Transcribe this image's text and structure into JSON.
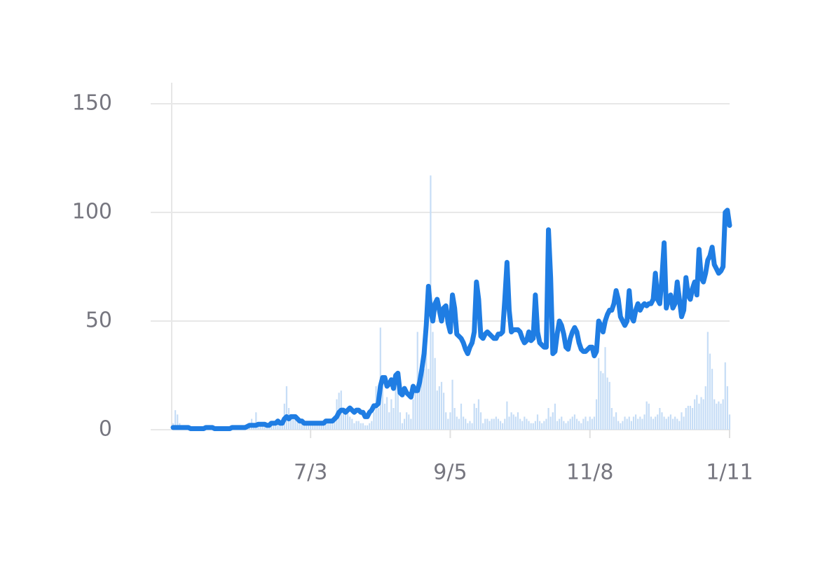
{
  "chart_data": {
    "type": "bar",
    "categories": [
      null,
      null,
      null,
      null,
      null,
      null,
      null,
      null,
      null,
      null,
      null,
      null,
      null,
      null,
      null,
      null,
      null,
      null,
      null,
      null,
      null,
      null,
      null,
      null,
      null,
      null,
      null,
      null,
      null,
      null,
      null,
      null,
      null,
      null,
      null,
      null,
      null,
      null,
      null,
      null,
      null,
      null,
      null,
      null,
      null,
      null,
      null,
      null,
      null,
      null,
      null,
      null,
      null,
      null,
      null,
      null,
      null,
      null,
      null,
      null,
      null,
      null,
      null,
      "7/3",
      null,
      null,
      null,
      null,
      null,
      null,
      null,
      null,
      null,
      null,
      null,
      null,
      null,
      null,
      null,
      null,
      null,
      null,
      null,
      null,
      null,
      null,
      null,
      null,
      null,
      null,
      null,
      null,
      null,
      null,
      null,
      null,
      null,
      null,
      null,
      null,
      null,
      null,
      null,
      null,
      null,
      null,
      null,
      null,
      null,
      null,
      null,
      null,
      null,
      null,
      null,
      null,
      null,
      null,
      null,
      null,
      null,
      null,
      null,
      null,
      null,
      null,
      null,
      "9/5",
      null,
      null,
      null,
      null,
      null,
      null,
      null,
      null,
      null,
      null,
      null,
      null,
      null,
      null,
      null,
      null,
      null,
      null,
      null,
      null,
      null,
      null,
      null,
      null,
      null,
      null,
      null,
      null,
      null,
      null,
      null,
      null,
      null,
      null,
      null,
      null,
      null,
      null,
      null,
      null,
      null,
      null,
      null,
      null,
      null,
      null,
      null,
      null,
      null,
      null,
      null,
      null,
      null,
      null,
      null,
      null,
      null,
      null,
      null,
      null,
      null,
      null,
      null,
      "11/8",
      null,
      null,
      null,
      null,
      null,
      null,
      null,
      null,
      null,
      null,
      null,
      null,
      null,
      null,
      null,
      null,
      null,
      null,
      null,
      null,
      null,
      null,
      null,
      null,
      null,
      null,
      null,
      null,
      null,
      null,
      null,
      null,
      null,
      null,
      null,
      null,
      null,
      null,
      null,
      null,
      null,
      null,
      null,
      null,
      null,
      null,
      null,
      null,
      null,
      null,
      null,
      null,
      null,
      null,
      null,
      null,
      null,
      null,
      null,
      null,
      null,
      null,
      null,
      "1/11"
    ],
    "series": [
      {
        "type": "bar",
        "color": "#c6ddf6",
        "values": [
          3,
          9,
          7,
          3,
          1,
          1,
          1,
          1,
          1,
          1,
          1,
          1,
          1,
          1,
          1,
          1,
          1,
          1,
          1,
          1,
          1,
          1,
          1,
          1,
          1,
          1,
          1,
          1,
          1,
          1,
          1,
          1,
          1,
          2,
          1,
          1,
          5,
          3,
          8,
          2,
          2,
          3,
          2,
          3,
          2,
          4,
          2,
          3,
          4,
          3,
          5,
          12,
          20,
          10,
          6,
          5,
          6,
          4,
          3,
          5,
          3,
          2,
          2,
          3,
          2,
          2,
          3,
          2,
          3,
          2,
          4,
          3,
          5,
          4,
          6,
          14,
          17,
          18,
          9,
          7,
          8,
          6,
          5,
          3,
          4,
          4,
          3,
          3,
          2,
          2,
          3,
          4,
          8,
          20,
          10,
          47,
          20,
          12,
          15,
          8,
          14,
          10,
          21,
          20,
          8,
          3,
          5,
          8,
          7,
          5,
          14,
          17,
          45,
          22,
          30,
          28,
          38,
          28,
          117,
          45,
          33,
          18,
          20,
          22,
          17,
          8,
          5,
          8,
          23,
          10,
          6,
          5,
          12,
          6,
          5,
          3,
          4,
          3,
          12,
          10,
          14,
          8,
          3,
          5,
          5,
          4,
          5,
          5,
          6,
          5,
          4,
          3,
          5,
          13,
          6,
          8,
          7,
          6,
          8,
          5,
          4,
          6,
          5,
          4,
          3,
          3,
          4,
          7,
          4,
          3,
          4,
          5,
          10,
          6,
          8,
          12,
          4,
          5,
          6,
          4,
          3,
          4,
          5,
          6,
          7,
          5,
          4,
          3,
          5,
          6,
          4,
          6,
          5,
          6,
          14,
          33,
          27,
          26,
          38,
          24,
          22,
          10,
          6,
          8,
          4,
          3,
          4,
          6,
          5,
          6,
          4,
          6,
          7,
          5,
          6,
          5,
          7,
          13,
          12,
          6,
          5,
          6,
          7,
          10,
          8,
          6,
          5,
          6,
          7,
          5,
          6,
          5,
          4,
          8,
          6,
          10,
          11,
          11,
          10,
          14,
          16,
          12,
          15,
          14,
          20,
          45,
          35,
          28,
          14,
          12,
          13,
          12,
          14,
          31,
          20,
          7
        ]
      },
      {
        "type": "line",
        "color": "#1f7de3",
        "values": [
          1,
          1,
          1,
          1,
          1,
          1,
          1,
          1,
          0.5,
          0.5,
          0.5,
          0.5,
          0.5,
          0.5,
          0.5,
          1,
          1,
          1,
          1,
          0.5,
          0.5,
          0.5,
          0.5,
          0.5,
          0.5,
          0.5,
          0.5,
          1,
          1,
          1,
          1,
          1,
          1,
          1,
          1.5,
          2,
          2,
          2,
          2,
          2.5,
          2.5,
          2.5,
          2.5,
          2,
          2,
          3,
          3,
          3,
          4,
          3,
          3,
          5,
          6,
          5,
          6,
          6,
          6,
          5,
          4,
          4,
          3,
          3,
          3,
          3,
          3,
          3,
          3,
          3,
          3,
          3,
          4,
          4,
          4,
          4,
          5,
          6,
          8,
          9,
          9,
          8,
          9,
          10,
          9,
          8,
          9,
          9,
          8,
          8,
          6,
          6,
          8,
          9,
          11,
          11,
          12,
          20,
          24,
          24,
          20,
          21,
          23,
          19,
          25,
          26,
          17,
          16,
          19,
          17,
          16,
          15,
          20,
          18,
          18,
          22,
          28,
          35,
          48,
          66,
          55,
          50,
          58,
          60,
          55,
          50,
          56,
          57,
          49,
          45,
          62,
          56,
          44,
          43,
          42,
          40,
          37,
          35,
          38,
          40,
          45,
          68,
          60,
          43,
          42,
          44,
          45,
          44,
          43,
          42,
          42,
          44,
          44,
          45,
          60,
          77,
          55,
          45,
          46,
          46,
          46,
          45,
          42,
          40,
          41,
          45,
          41,
          42,
          62,
          45,
          40,
          39,
          38,
          38,
          92,
          70,
          35,
          36,
          44,
          50,
          48,
          44,
          38,
          37,
          42,
          45,
          47,
          45,
          40,
          37,
          36,
          36,
          37,
          38,
          38,
          34,
          36,
          50,
          48,
          45,
          50,
          53,
          55,
          55,
          58,
          64,
          60,
          52,
          50,
          48,
          50,
          64,
          52,
          50,
          55,
          58,
          55,
          57,
          58,
          57,
          58,
          58,
          60,
          72,
          60,
          58,
          70,
          86,
          56,
          60,
          62,
          56,
          58,
          68,
          60,
          52,
          55,
          70,
          62,
          60,
          65,
          68,
          62,
          83,
          70,
          68,
          72,
          78,
          80,
          84,
          76,
          74,
          72,
          73,
          75,
          100,
          101,
          94
        ]
      }
    ],
    "ylim": [
      0,
      150
    ],
    "yticks": [
      0,
      50,
      100,
      150
    ],
    "grid": true
  }
}
